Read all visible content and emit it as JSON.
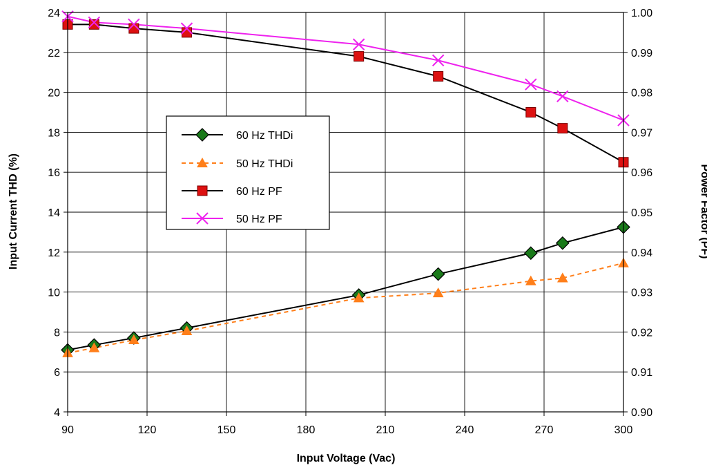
{
  "chart_data": {
    "type": "line",
    "xlabel": "Input Voltage (Vac)",
    "ylabel_left": "Input Current THD (%)",
    "ylabel_right": "Power Factor (PF)",
    "xlim": [
      90,
      300
    ],
    "xticks": [
      90,
      120,
      150,
      180,
      210,
      240,
      270,
      300
    ],
    "ylim_left": [
      4,
      24
    ],
    "yticks_left": [
      4,
      6,
      8,
      10,
      12,
      14,
      16,
      18,
      20,
      22,
      24
    ],
    "ylim_right": [
      0.9,
      1.0
    ],
    "yticks_right": [
      "0.90",
      "0.91",
      "0.92",
      "0.93",
      "0.94",
      "0.95",
      "0.96",
      "0.97",
      "0.98",
      "0.99",
      "1.00"
    ],
    "grid": true,
    "legend_position": "center-left",
    "series": [
      {
        "name": "60 Hz THDi",
        "axis": "left",
        "color": "#1a7a1a",
        "line_color": "#000000",
        "line_style": "solid",
        "marker": "diamond",
        "x": [
          90,
          100,
          115,
          135,
          200,
          230,
          265,
          277,
          300
        ],
        "y": [
          7.1,
          7.35,
          7.7,
          8.2,
          9.85,
          10.9,
          11.95,
          12.45,
          13.25
        ]
      },
      {
        "name": "50 Hz THDi",
        "axis": "left",
        "color": "#ff7f1a",
        "line_color": "#ff7f1a",
        "line_style": "dashed",
        "marker": "triangle",
        "x": [
          90,
          100,
          115,
          135,
          200,
          230,
          265,
          277,
          300
        ],
        "y": [
          6.95,
          7.2,
          7.6,
          8.05,
          9.7,
          9.95,
          10.55,
          10.7,
          11.45
        ]
      },
      {
        "name": "60 Hz PF",
        "axis": "right",
        "color": "#dd1111",
        "line_color": "#000000",
        "line_style": "solid",
        "marker": "square",
        "x": [
          90,
          100,
          115,
          135,
          200,
          230,
          265,
          277,
          300
        ],
        "y": [
          0.997,
          0.997,
          0.996,
          0.995,
          0.989,
          0.984,
          0.975,
          0.971,
          0.9625
        ]
      },
      {
        "name": "50 Hz PF",
        "axis": "right",
        "color": "#ee22ee",
        "line_color": "#ee22ee",
        "line_style": "solid",
        "marker": "x",
        "x": [
          90,
          100,
          115,
          135,
          200,
          230,
          265,
          277,
          300
        ],
        "y": [
          0.999,
          0.9975,
          0.997,
          0.996,
          0.992,
          0.988,
          0.982,
          0.979,
          0.973
        ]
      }
    ]
  }
}
